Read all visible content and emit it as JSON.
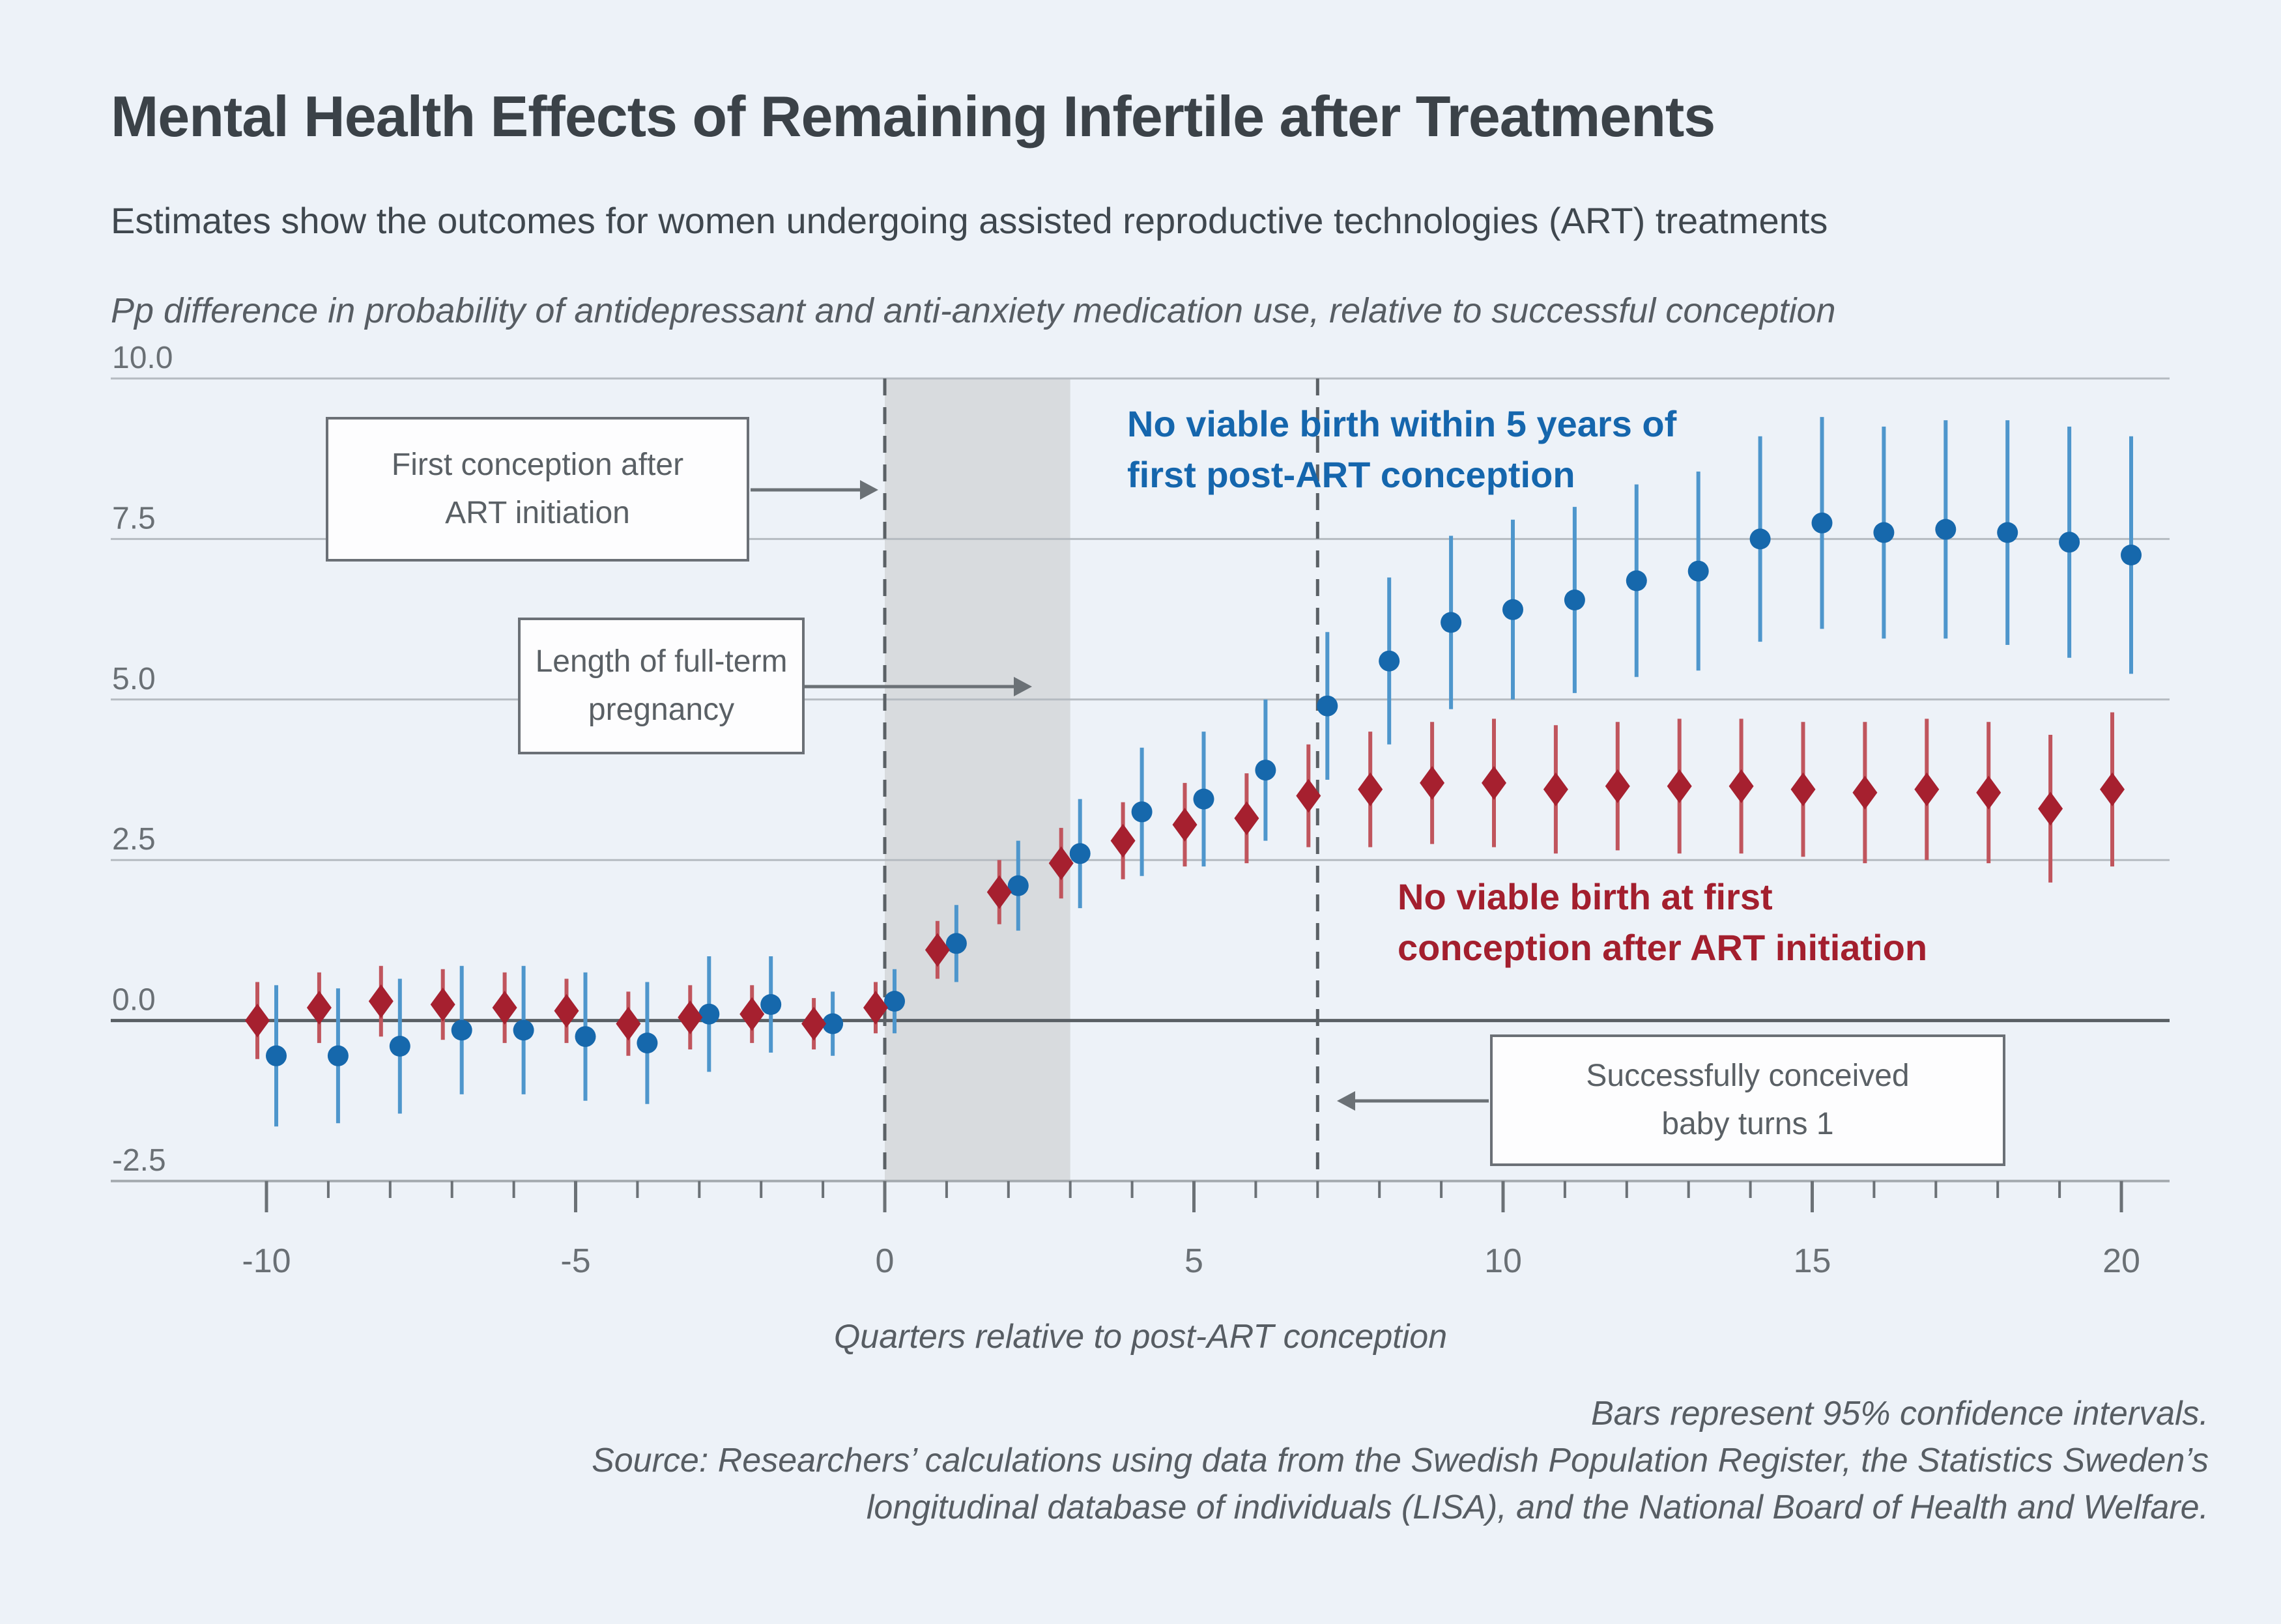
{
  "header": {
    "title": "Mental Health Effects of Remaining Infertile after Treatments",
    "subtitle": "Estimates show the outcomes for women undergoing assisted reproductive technologies (ART) treatments",
    "y_caption": "Pp difference in probability of antidepressant and anti-anxiety medication use, relative to successful conception"
  },
  "footer": {
    "note": "Bars represent 95% confidence intervals.",
    "source_line1": "Source: Researchers’ calculations using data from the Swedish Population Register, the Statistics Sweden’s",
    "source_line2": "longitudinal database of individuals (LISA), and the National Board of Health and Welfare."
  },
  "chart_data": {
    "type": "scatter",
    "xlabel": "Quarters relative to post-ART conception",
    "ylabel": "Pp difference in probability of antidepressant and anti-anxiety medication use, relative to successful conception",
    "xlim": [
      -12.5,
      20.8
    ],
    "ylim": [
      -2.5,
      10.0
    ],
    "x_ticks_minor_step": 1,
    "x_ticks_major": [
      -10,
      -5,
      0,
      5,
      10,
      15,
      20
    ],
    "x_tick_labels": [
      "-10",
      "-5",
      "0",
      "5",
      "10",
      "15",
      "20"
    ],
    "y_ticks": [
      10.0,
      7.5,
      5.0,
      2.5,
      0.0,
      -2.5
    ],
    "y_tick_labels": [
      "10.0",
      "7.5",
      "5.0",
      "2.5",
      "0.0",
      "-2.5"
    ],
    "grid": "horizontal",
    "zero_line": 0,
    "shaded_band": {
      "from": 0,
      "to": 3,
      "color": "#d8dbde"
    },
    "dashed_lines_at": [
      0,
      7
    ],
    "x": [
      -10,
      -9,
      -8,
      -7,
      -6,
      -5,
      -4,
      -3,
      -2,
      -1,
      0,
      1,
      2,
      3,
      4,
      5,
      6,
      7,
      8,
      9,
      10,
      11,
      12,
      13,
      14,
      15,
      16,
      17,
      18,
      19,
      20
    ],
    "series": [
      {
        "name": "No viable birth within 5 years of first post-ART conception",
        "label_lines": [
          "No viable birth within 5 years of",
          "first post-ART conception"
        ],
        "marker": "circle",
        "color": "#1668ac",
        "ci_color": "#4e96cc",
        "label_color": "#1566ad",
        "values": [
          -0.55,
          -0.55,
          -0.4,
          -0.15,
          -0.15,
          -0.25,
          -0.35,
          0.1,
          0.25,
          -0.05,
          0.3,
          1.2,
          2.1,
          2.6,
          3.25,
          3.45,
          3.9,
          4.9,
          5.6,
          6.2,
          6.4,
          6.55,
          6.85,
          7.0,
          7.5,
          7.75,
          7.6,
          7.65,
          7.6,
          7.45,
          7.25
        ],
        "ci_halfwidth": [
          1.1,
          1.05,
          1.05,
          1.0,
          1.0,
          1.0,
          0.95,
          0.9,
          0.75,
          0.5,
          0.5,
          0.6,
          0.7,
          0.85,
          1.0,
          1.05,
          1.1,
          1.15,
          1.3,
          1.35,
          1.4,
          1.45,
          1.5,
          1.55,
          1.6,
          1.65,
          1.65,
          1.7,
          1.75,
          1.8,
          1.85
        ]
      },
      {
        "name": "No viable birth at first conception after ART initiation",
        "label_lines": [
          "No viable birth at first",
          "conception after ART initiation"
        ],
        "marker": "diamond",
        "color": "#a6202f",
        "ci_color": "#c0555d",
        "label_color": "#a31f2e",
        "values": [
          0.0,
          0.2,
          0.3,
          0.25,
          0.2,
          0.15,
          -0.05,
          0.05,
          0.1,
          -0.05,
          0.2,
          1.1,
          2.0,
          2.45,
          2.8,
          3.05,
          3.15,
          3.5,
          3.6,
          3.7,
          3.7,
          3.6,
          3.65,
          3.65,
          3.65,
          3.6,
          3.55,
          3.6,
          3.55,
          3.3,
          3.6
        ],
        "ci_halfwidth": [
          0.6,
          0.55,
          0.55,
          0.55,
          0.55,
          0.5,
          0.5,
          0.5,
          0.45,
          0.4,
          0.4,
          0.45,
          0.5,
          0.55,
          0.6,
          0.65,
          0.7,
          0.8,
          0.9,
          0.95,
          1.0,
          1.0,
          1.0,
          1.05,
          1.05,
          1.05,
          1.1,
          1.1,
          1.1,
          1.15,
          1.2
        ]
      }
    ],
    "annotations": [
      {
        "lines": [
          "First conception after",
          "ART initiation"
        ],
        "points_to": "dashed line at quarter 0"
      },
      {
        "lines": [
          "Length of full-term",
          "pregnancy"
        ],
        "points_to": "shaded band from quarter 0 to 3"
      },
      {
        "lines": [
          "Successfully conceived",
          "baby turns 1"
        ],
        "points_to": "dashed line at quarter 7"
      }
    ],
    "colors": {
      "background": "#edf2f8",
      "gridline": "#b5bbc1",
      "zero_line": "#595f64",
      "axis_line": "#a7adb2",
      "tick": "#6b7176",
      "tick_label": "#6a7075",
      "dashed_line": "#5b6166",
      "arrow": "#6b7176",
      "band": "#d8dbde"
    },
    "legend_position": "labels next to series"
  }
}
